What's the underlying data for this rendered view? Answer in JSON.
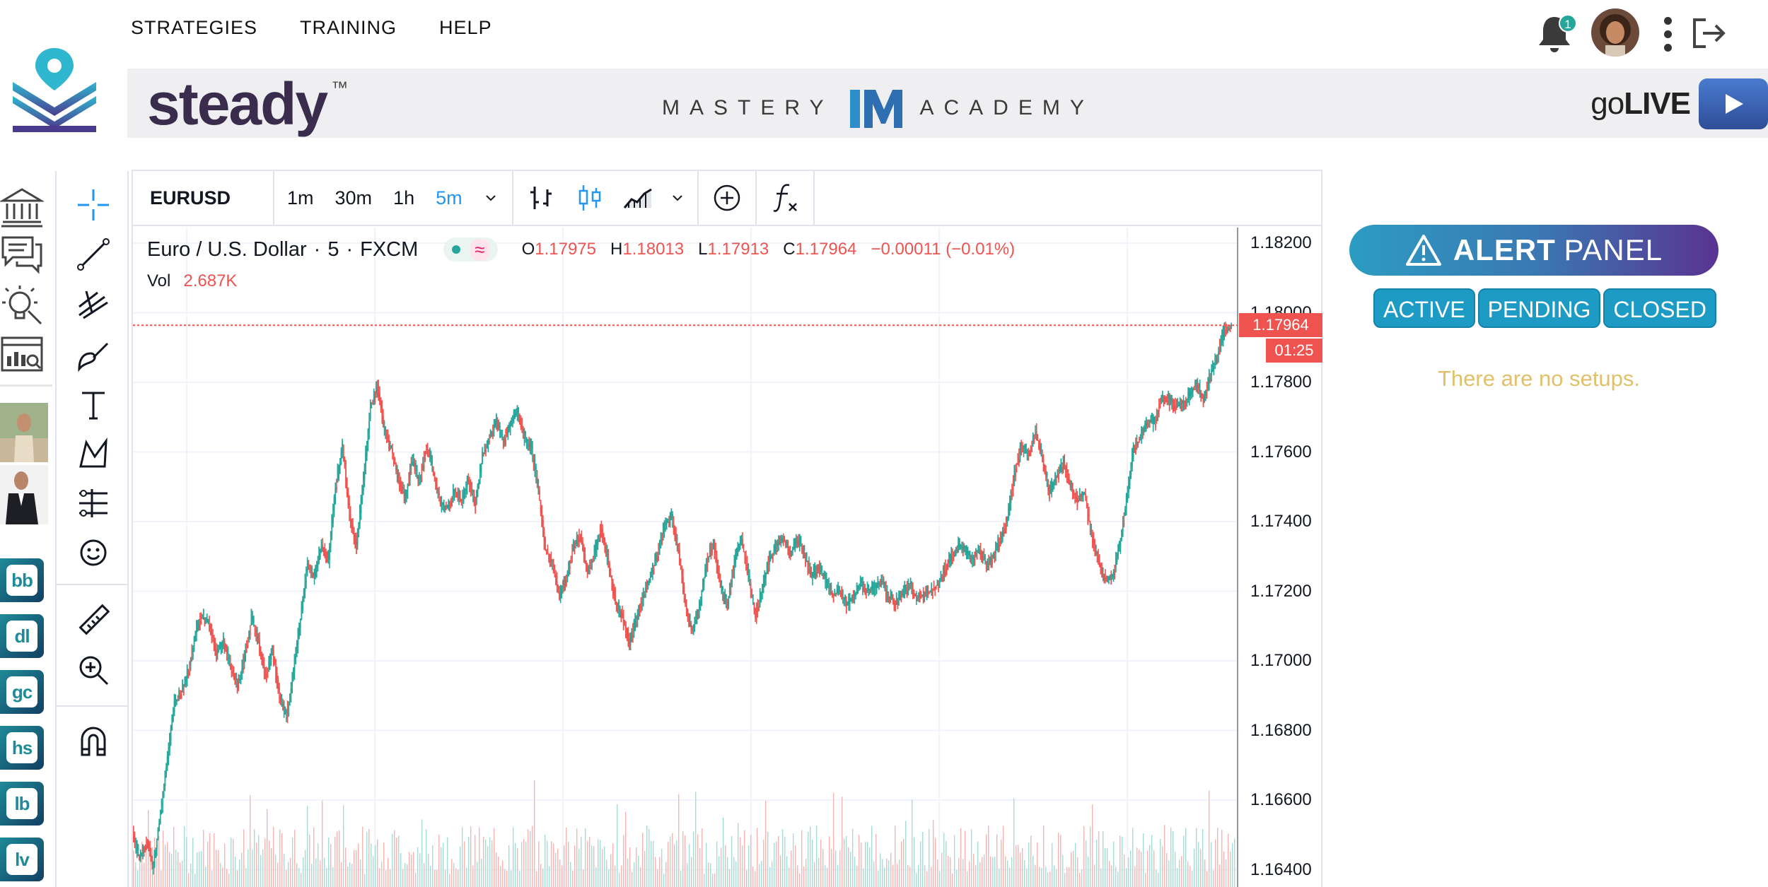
{
  "nav": {
    "items": [
      "STRATEGIES",
      "TRAINING",
      "HELP"
    ],
    "notification_count": "1"
  },
  "banner": {
    "brand": "steady",
    "brand_tm": "™",
    "mastery_left": "MASTERY",
    "mastery_right": "ACADEMY",
    "golive_prefix": "go",
    "golive_suffix": "LIVE"
  },
  "apps": [
    "bb",
    "dl",
    "gc",
    "hs",
    "lb",
    "lv"
  ],
  "chart": {
    "symbol": "EURUSD",
    "timeframes": [
      "1m",
      "30m",
      "1h",
      "5m"
    ],
    "active_timeframe": "5m",
    "legend": {
      "name": "Euro / U.S. Dollar",
      "interval": "5",
      "exchange": "FXCM",
      "o_label": "O",
      "o": "1.17975",
      "h_label": "H",
      "h": "1.18013",
      "l_label": "L",
      "l": "1.17913",
      "c_label": "C",
      "c": "1.17964",
      "change": "−0.00011 (−0.01%)",
      "vol_label": "Vol",
      "vol": "2.687K"
    },
    "price_axis": [
      "1.18200",
      "1.18000",
      "1.17800",
      "1.17600",
      "1.17400",
      "1.17200",
      "1.17000",
      "1.16800",
      "1.16600",
      "1.16400"
    ],
    "last_price": "1.17964",
    "countdown": "01:25",
    "colors": {
      "up": "#26a69a",
      "down": "#ef5350",
      "grid": "#f0f3fa",
      "accent": "#2196f3"
    }
  },
  "chart_data": {
    "type": "line",
    "title": "Euro / U.S. Dollar",
    "xlabel": "",
    "ylabel": "",
    "ylim": [
      1.1636,
      1.1832
    ],
    "series": [
      {
        "values": [
          1.1651,
          1.1643,
          1.1648,
          1.1641,
          1.1656,
          1.1672,
          1.1688,
          1.1691,
          1.1697,
          1.1708,
          1.1713,
          1.171,
          1.1702,
          1.1706,
          1.1698,
          1.1693,
          1.1701,
          1.1712,
          1.1706,
          1.1695,
          1.1703,
          1.169,
          1.1684,
          1.1697,
          1.1712,
          1.1728,
          1.1724,
          1.1733,
          1.1729,
          1.175,
          1.1762,
          1.1742,
          1.1733,
          1.1752,
          1.1773,
          1.1779,
          1.1766,
          1.1761,
          1.1752,
          1.1747,
          1.1758,
          1.1751,
          1.1762,
          1.1754,
          1.1745,
          1.1744,
          1.1749,
          1.1746,
          1.1752,
          1.1745,
          1.1759,
          1.1764,
          1.1769,
          1.1763,
          1.1768,
          1.1772,
          1.1764,
          1.1761,
          1.1749,
          1.1732,
          1.1728,
          1.1718,
          1.1724,
          1.1733,
          1.1736,
          1.1725,
          1.1731,
          1.1738,
          1.1728,
          1.1717,
          1.1713,
          1.1705,
          1.1712,
          1.1719,
          1.1724,
          1.1731,
          1.1739,
          1.1741,
          1.1732,
          1.1716,
          1.1708,
          1.1716,
          1.1728,
          1.1734,
          1.1721,
          1.1716,
          1.1728,
          1.1735,
          1.1724,
          1.1713,
          1.1721,
          1.1729,
          1.1733,
          1.1735,
          1.1731,
          1.1735,
          1.1731,
          1.1724,
          1.1727,
          1.1723,
          1.1719,
          1.172,
          1.1716,
          1.1718,
          1.1722,
          1.172,
          1.1721,
          1.1723,
          1.1718,
          1.1717,
          1.1719,
          1.1722,
          1.1718,
          1.1719,
          1.172,
          1.1722,
          1.1726,
          1.173,
          1.1733,
          1.1731,
          1.1729,
          1.1732,
          1.1728,
          1.173,
          1.1735,
          1.1741,
          1.1754,
          1.1762,
          1.1759,
          1.1766,
          1.1758,
          1.1748,
          1.1753,
          1.1757,
          1.175,
          1.1746,
          1.1748,
          1.1736,
          1.1729,
          1.1723,
          1.1724,
          1.1733,
          1.1746,
          1.1761,
          1.1764,
          1.1769,
          1.1768,
          1.1776,
          1.1775,
          1.1773,
          1.1774,
          1.1776,
          1.178,
          1.1775,
          1.1782,
          1.1788,
          1.1795,
          1.1796
        ]
      }
    ]
  },
  "alert_panel": {
    "title_bold": "ALERT",
    "title_thin": "PANEL",
    "tabs": [
      "ACTIVE",
      "PENDING",
      "CLOSED"
    ],
    "empty_message": "There are no setups."
  }
}
